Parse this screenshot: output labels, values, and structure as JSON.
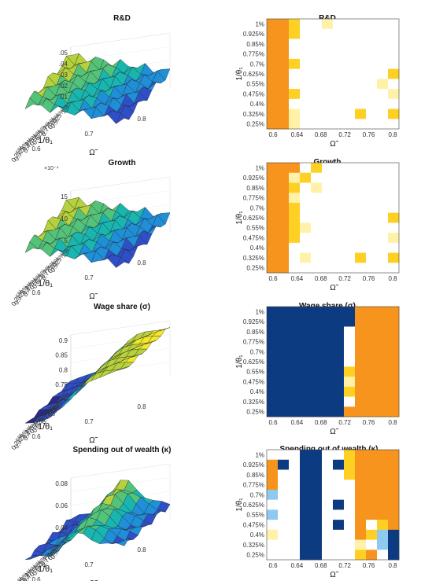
{
  "chart_data": [
    {
      "type": "surface",
      "title": "R&D",
      "xlabel": "1/θ₁",
      "ylabel": "Ω̃",
      "z_ticks": [
        ".01",
        ".02",
        ".03",
        ".04",
        ".05"
      ],
      "x_ticks": [
        "1%",
        "0.925%",
        "0.85%",
        "0.775%",
        "0.7%",
        "0.625%",
        "0.55%",
        "0.475%",
        "0.4%",
        "0.325%",
        "0.25%"
      ],
      "y_ticks": [
        "0.6",
        "0.7",
        "0.8"
      ],
      "zlim": [
        0.01,
        0.05
      ],
      "trend": {
        "high_corner": 0.042,
        "low_corner": 0.022
      }
    },
    {
      "type": "heatmap",
      "title": "R&D",
      "xlabel": "Ω̃",
      "ylabel": "1/θ₁",
      "x_ticks": [
        "0.6",
        "0.64",
        "0.68",
        "0.72",
        "0.76",
        "0.8"
      ],
      "y_ticks": [
        "1%",
        "0.925%",
        "0.85%",
        "0.775%",
        "0.7%",
        "0.625%",
        "0.55%",
        "0.475%",
        "0.4%",
        "0.325%",
        "0.25%"
      ],
      "grid": [
        [
          1,
          1,
          2,
          0,
          0,
          3,
          0,
          0,
          0,
          0,
          0,
          0
        ],
        [
          1,
          1,
          2,
          0,
          0,
          0,
          0,
          0,
          0,
          0,
          0,
          0
        ],
        [
          1,
          1,
          0,
          0,
          0,
          0,
          0,
          0,
          0,
          0,
          0,
          0
        ],
        [
          1,
          1,
          0,
          0,
          0,
          0,
          0,
          0,
          0,
          0,
          0,
          0
        ],
        [
          1,
          1,
          2,
          0,
          0,
          0,
          0,
          0,
          0,
          0,
          0,
          0
        ],
        [
          1,
          1,
          0,
          0,
          0,
          0,
          0,
          0,
          0,
          0,
          0,
          2
        ],
        [
          1,
          1,
          0,
          0,
          0,
          0,
          0,
          0,
          0,
          0,
          3,
          0
        ],
        [
          1,
          1,
          2,
          0,
          0,
          0,
          0,
          0,
          0,
          0,
          0,
          3
        ],
        [
          1,
          1,
          0,
          0,
          0,
          0,
          0,
          0,
          0,
          0,
          0,
          0
        ],
        [
          1,
          1,
          3,
          0,
          0,
          0,
          0,
          0,
          2,
          0,
          0,
          2
        ],
        [
          1,
          1,
          3,
          0,
          0,
          0,
          0,
          0,
          0,
          0,
          0,
          0
        ]
      ]
    },
    {
      "type": "surface",
      "title": "Growth",
      "multiplier": "×10⁻⁴",
      "xlabel": "1/θ₁",
      "ylabel": "Ω̃",
      "z_ticks": [
        "5",
        "10",
        "15"
      ],
      "x_ticks": [
        "1%",
        "0.925%",
        "0.85%",
        "0.775%",
        "0.7%",
        "0.625%",
        "0.55%",
        "0.475%",
        "0.4%",
        "0.325%",
        "0.25%"
      ],
      "y_ticks": [
        "0.6",
        "0.7",
        "0.8"
      ],
      "zlim": [
        2,
        15
      ],
      "trend": {
        "high_corner": 13,
        "low_corner": 5
      }
    },
    {
      "type": "heatmap",
      "title": "Growth",
      "xlabel": "Ω̃",
      "ylabel": "1/θ₁",
      "x_ticks": [
        "0.6",
        "0.64",
        "0.68",
        "0.72",
        "0.76",
        "0.8"
      ],
      "y_ticks": [
        "1%",
        "0.925%",
        "0.85%",
        "0.775%",
        "0.7%",
        "0.625%",
        "0.55%",
        "0.475%",
        "0.4%",
        "0.325%",
        "0.25%"
      ],
      "grid": [
        [
          1,
          1,
          1,
          0,
          2,
          0,
          0,
          0,
          0,
          0,
          0,
          0
        ],
        [
          1,
          1,
          3,
          2,
          0,
          0,
          0,
          0,
          0,
          0,
          0,
          0
        ],
        [
          1,
          1,
          2,
          0,
          3,
          0,
          0,
          0,
          0,
          0,
          0,
          0
        ],
        [
          1,
          1,
          3,
          0,
          0,
          0,
          0,
          0,
          0,
          0,
          0,
          0
        ],
        [
          1,
          1,
          2,
          0,
          0,
          0,
          0,
          0,
          0,
          0,
          0,
          0
        ],
        [
          1,
          1,
          2,
          0,
          0,
          0,
          0,
          0,
          0,
          0,
          0,
          2
        ],
        [
          1,
          1,
          2,
          3,
          0,
          0,
          0,
          0,
          0,
          0,
          0,
          0
        ],
        [
          1,
          1,
          2,
          0,
          0,
          0,
          0,
          0,
          0,
          0,
          0,
          3
        ],
        [
          1,
          1,
          0,
          0,
          0,
          0,
          0,
          0,
          0,
          0,
          0,
          0
        ],
        [
          1,
          1,
          0,
          3,
          0,
          0,
          0,
          0,
          2,
          0,
          0,
          2
        ],
        [
          1,
          1,
          0,
          0,
          0,
          0,
          0,
          0,
          0,
          0,
          0,
          0
        ]
      ]
    },
    {
      "type": "surface",
      "title": "Wage share (σ)",
      "xlabel": "1/θ₁",
      "ylabel": "Ω̃",
      "z_ticks": [
        "0.75",
        "0.8",
        "0.85",
        "0.9"
      ],
      "x_ticks": [
        "1%",
        "0.925%",
        "0.85%",
        "0.775%",
        "0.7%",
        "0.625%",
        "0.55%",
        "0.475%",
        "0.4%",
        "0.325%",
        "0.25%"
      ],
      "y_ticks": [
        "0.6",
        "0.7",
        "0.8"
      ],
      "zlim": [
        0.72,
        0.92
      ],
      "trend": {
        "high_corner": 0.91,
        "low_corner": 0.74
      }
    },
    {
      "type": "heatmap",
      "title": "Wage share (σ)",
      "xlabel": "Ω̃",
      "ylabel": "1/θ₁",
      "x_ticks": [
        "0.6",
        "0.64",
        "0.68",
        "0.72",
        "0.76",
        "0.8"
      ],
      "y_ticks": [
        "1%",
        "0.925%",
        "0.85%",
        "0.775%",
        "0.7%",
        "0.625%",
        "0.55%",
        "0.475%",
        "0.4%",
        "0.325%",
        "0.25%"
      ],
      "grid": [
        [
          4,
          4,
          4,
          4,
          4,
          4,
          4,
          4,
          1,
          1,
          1,
          1
        ],
        [
          4,
          4,
          4,
          4,
          4,
          4,
          4,
          4,
          1,
          1,
          1,
          1
        ],
        [
          4,
          4,
          4,
          4,
          4,
          4,
          4,
          0,
          1,
          1,
          1,
          1
        ],
        [
          4,
          4,
          4,
          4,
          4,
          4,
          4,
          0,
          1,
          1,
          1,
          1
        ],
        [
          4,
          4,
          4,
          4,
          4,
          4,
          4,
          0,
          1,
          1,
          1,
          1
        ],
        [
          4,
          4,
          4,
          4,
          4,
          4,
          4,
          0,
          1,
          1,
          1,
          1
        ],
        [
          4,
          4,
          4,
          4,
          4,
          4,
          4,
          2,
          1,
          1,
          1,
          1
        ],
        [
          4,
          4,
          4,
          4,
          4,
          4,
          4,
          3,
          1,
          1,
          1,
          1
        ],
        [
          4,
          4,
          4,
          4,
          4,
          4,
          4,
          2,
          1,
          1,
          1,
          1
        ],
        [
          4,
          4,
          4,
          4,
          4,
          4,
          4,
          0,
          1,
          1,
          1,
          1
        ],
        [
          4,
          4,
          4,
          4,
          4,
          4,
          4,
          1,
          1,
          1,
          1,
          1
        ]
      ]
    },
    {
      "type": "surface",
      "title": "Spending out of wealth (κ)",
      "xlabel": "1/θ₁",
      "ylabel": "Ω̃",
      "z_ticks": [
        "0.04",
        "0.06",
        "0.08"
      ],
      "x_ticks": [
        "1%",
        "0.925%",
        "0.85%",
        "0.775%",
        "0.7%",
        "0.625%",
        "0.55%",
        "0.475%",
        "0.4%",
        "0.325%",
        "0.25%"
      ],
      "y_ticks": [
        "0.6",
        "0.7",
        "0.8"
      ],
      "zlim": [
        0.035,
        0.085
      ],
      "trend": {
        "high_corner": 0.075,
        "low_corner": 0.045
      }
    },
    {
      "type": "heatmap",
      "title": "Spending out of wealth (κ)",
      "xlabel": "Ω̃",
      "ylabel": "1/θ₁",
      "x_ticks": [
        "0.6",
        "0.64",
        "0.68",
        "0.72",
        "0.76",
        "0.8"
      ],
      "y_ticks": [
        "1%",
        "0.925%",
        "0.85%",
        "0.775%",
        "0.7%",
        "0.625%",
        "0.55%",
        "0.475%",
        "0.4%",
        "0.325%",
        "0.25%"
      ],
      "grid": [
        [
          0,
          0,
          0,
          4,
          4,
          0,
          0,
          2,
          1,
          1,
          1,
          1
        ],
        [
          1,
          4,
          0,
          4,
          4,
          0,
          4,
          2,
          1,
          1,
          1,
          1
        ],
        [
          1,
          0,
          0,
          4,
          4,
          0,
          0,
          2,
          1,
          1,
          1,
          1
        ],
        [
          1,
          0,
          0,
          4,
          4,
          0,
          0,
          0,
          1,
          1,
          1,
          1
        ],
        [
          5,
          0,
          0,
          4,
          4,
          0,
          0,
          0,
          1,
          1,
          1,
          1
        ],
        [
          0,
          0,
          0,
          4,
          4,
          0,
          4,
          0,
          1,
          1,
          1,
          1
        ],
        [
          5,
          0,
          0,
          4,
          4,
          0,
          0,
          0,
          1,
          1,
          1,
          1
        ],
        [
          0,
          0,
          0,
          4,
          4,
          0,
          4,
          0,
          1,
          0,
          2,
          1
        ],
        [
          3,
          0,
          0,
          4,
          4,
          0,
          0,
          0,
          1,
          2,
          5,
          4
        ],
        [
          0,
          0,
          0,
          4,
          4,
          0,
          0,
          0,
          3,
          0,
          5,
          4
        ],
        [
          0,
          0,
          0,
          4,
          4,
          0,
          0,
          0,
          2,
          1,
          0,
          4
        ]
      ]
    }
  ],
  "palette": {
    "heat": [
      "#ffffff",
      "#f7941d",
      "#fdd023",
      "#fff2a8",
      "#0d3b82",
      "#8ec9ef"
    ],
    "surface": [
      "#2b2a86",
      "#2f4fc8",
      "#1f8fd8",
      "#19b5b0",
      "#53c37a",
      "#b5d13c",
      "#f2e72a"
    ]
  }
}
